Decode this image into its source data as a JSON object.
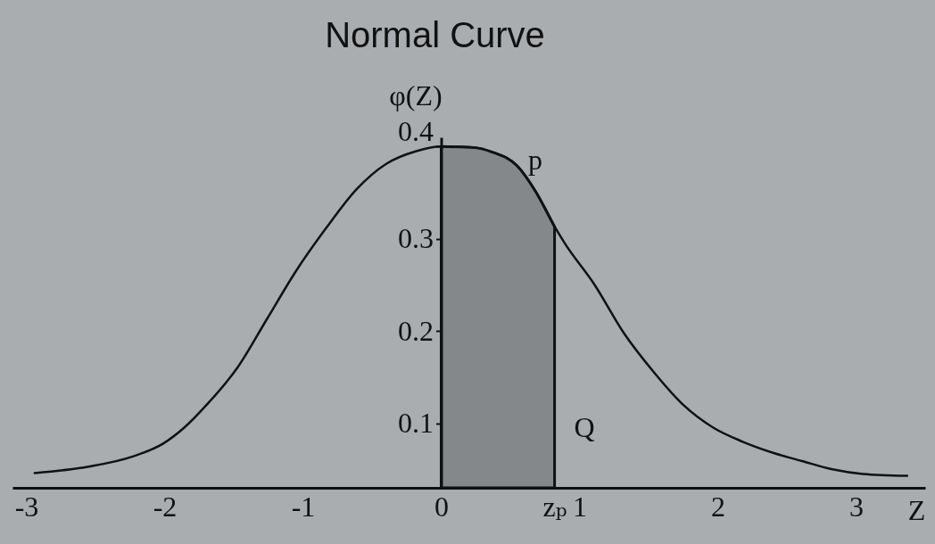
{
  "chart_data": {
    "type": "line",
    "title": "Normal Curve",
    "xlabel": "Z",
    "ylabel": "φ(Z)",
    "xlim": [
      -3.1,
      3.5
    ],
    "ylim": [
      0.03,
      0.41
    ],
    "xticks": [
      -3,
      -2,
      -1,
      0,
      {
        "value": 0.82,
        "label": "zₚ"
      },
      1,
      2,
      3
    ],
    "yticks": [
      0.1,
      0.2,
      0.3,
      0.4
    ],
    "series": [
      {
        "type": "area",
        "color": "#85888b",
        "x": [
          0,
          0.23,
          0.37,
          0.55,
          0.68,
          0.82
        ],
        "values": [
          0.4,
          0.399,
          0.394,
          0.379,
          0.352,
          0.313
        ]
      },
      {
        "type": "line",
        "color": "#111111",
        "x": [
          -2.94,
          -2.55,
          -2.23,
          -2.01,
          -1.86,
          -1.69,
          -1.47,
          -1.26,
          -1.05,
          -0.83,
          -0.61,
          -0.4,
          -0.18,
          0,
          0.23,
          0.37,
          0.55,
          0.68,
          0.81,
          0.89,
          1.11,
          1.32,
          1.54,
          1.75,
          1.97,
          2.18,
          2.4,
          2.61,
          2.83,
          3.05,
          3.37
        ],
        "values": [
          0.046,
          0.053,
          0.064,
          0.078,
          0.095,
          0.121,
          0.161,
          0.213,
          0.265,
          0.312,
          0.354,
          0.381,
          0.395,
          0.4,
          0.399,
          0.394,
          0.379,
          0.352,
          0.316,
          0.296,
          0.25,
          0.198,
          0.155,
          0.12,
          0.095,
          0.08,
          0.068,
          0.059,
          0.05,
          0.045,
          0.043
        ]
      }
    ],
    "annotations": [
      "p",
      "Q"
    ]
  }
}
